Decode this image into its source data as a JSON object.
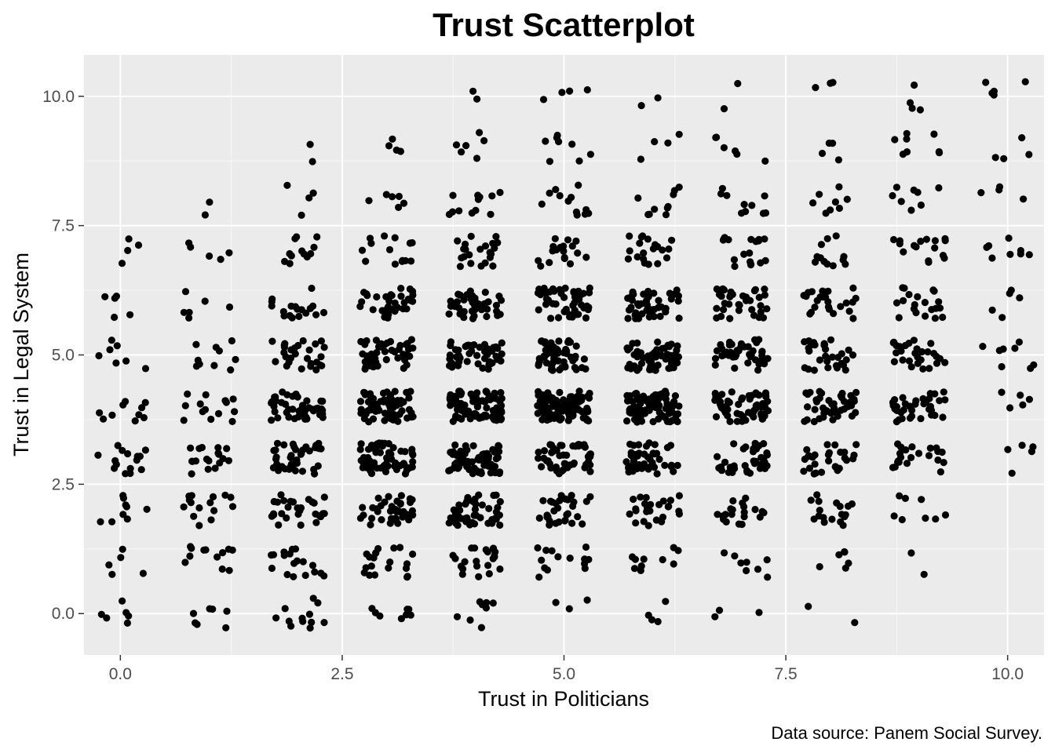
{
  "chart_data": {
    "type": "scatter",
    "title": "Trust Scatterplot",
    "xlabel": "Trust in Politicians",
    "ylabel": "Trust in Legal System",
    "caption": "Data source: Panem Social Survey.",
    "xlim": [
      -0.41,
      10.41
    ],
    "ylim": [
      -0.8,
      10.8
    ],
    "x_ticks": [
      0.0,
      2.5,
      5.0,
      7.5,
      10.0
    ],
    "x_tick_labels": [
      "0.0",
      "2.5",
      "5.0",
      "7.5",
      "10.0"
    ],
    "y_ticks": [
      0.0,
      2.5,
      5.0,
      7.5,
      10.0
    ],
    "y_tick_labels": [
      "0.0",
      "2.5",
      "5.0",
      "7.5",
      "10.0"
    ],
    "grid": true,
    "legend": "none",
    "point_color": "#000000",
    "panel_background": "#ebebeb",
    "jitter": 0.3,
    "points_per_cell": [
      [
        6,
        5,
        9,
        15,
        10,
        7,
        5,
        4,
        0,
        0,
        0
      ],
      [
        7,
        12,
        15,
        18,
        14,
        10,
        6,
        5,
        2,
        0,
        0
      ],
      [
        12,
        18,
        28,
        38,
        45,
        28,
        18,
        12,
        4,
        2,
        0
      ],
      [
        8,
        20,
        40,
        60,
        70,
        45,
        35,
        14,
        6,
        4,
        0
      ],
      [
        8,
        22,
        45,
        75,
        85,
        50,
        40,
        22,
        12,
        6,
        2
      ],
      [
        3,
        14,
        30,
        50,
        95,
        55,
        50,
        18,
        12,
        8,
        4
      ],
      [
        4,
        10,
        25,
        45,
        85,
        60,
        45,
        20,
        10,
        4,
        2
      ],
      [
        3,
        8,
        20,
        38,
        60,
        40,
        35,
        18,
        10,
        6,
        2
      ],
      [
        2,
        6,
        18,
        28,
        45,
        30,
        25,
        12,
        8,
        4,
        3
      ],
      [
        0,
        2,
        8,
        22,
        38,
        28,
        20,
        16,
        8,
        8,
        4
      ],
      [
        0,
        0,
        0,
        5,
        5,
        8,
        5,
        8,
        4,
        4,
        5
      ]
    ],
    "points_per_cell_note": "rows = Trust in Politicians 0..10, columns = Trust in Legal System 0..10"
  }
}
